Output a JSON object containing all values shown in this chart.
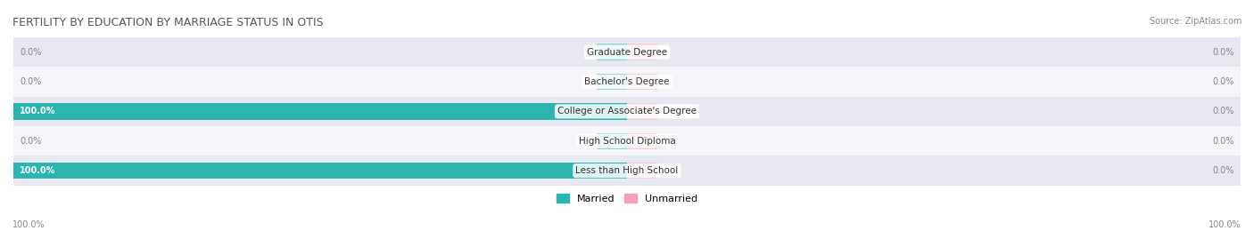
{
  "title": "FERTILITY BY EDUCATION BY MARRIAGE STATUS IN OTIS",
  "source": "Source: ZipAtlas.com",
  "categories": [
    "Less than High School",
    "High School Diploma",
    "College or Associate's Degree",
    "Bachelor's Degree",
    "Graduate Degree"
  ],
  "married_values": [
    100.0,
    0.0,
    100.0,
    0.0,
    0.0
  ],
  "unmarried_values": [
    0.0,
    0.0,
    0.0,
    0.0,
    0.0
  ],
  "married_color": "#2ab5b0",
  "unmarried_color": "#f4a0b5",
  "married_light_color": "#90d5d3",
  "unmarried_light_color": "#f9c8d6",
  "bar_bg_color": "#f0f0f5",
  "row_bg_colors": [
    "#e8e8f0",
    "#f5f5fa"
  ],
  "title_fontsize": 9,
  "source_fontsize": 7,
  "label_fontsize": 7.5,
  "value_fontsize": 7,
  "legend_fontsize": 8,
  "left_axis_label": "100.0%",
  "right_axis_label": "100.0%",
  "background_color": "#ffffff",
  "bar_height": 0.55,
  "max_val": 100.0
}
